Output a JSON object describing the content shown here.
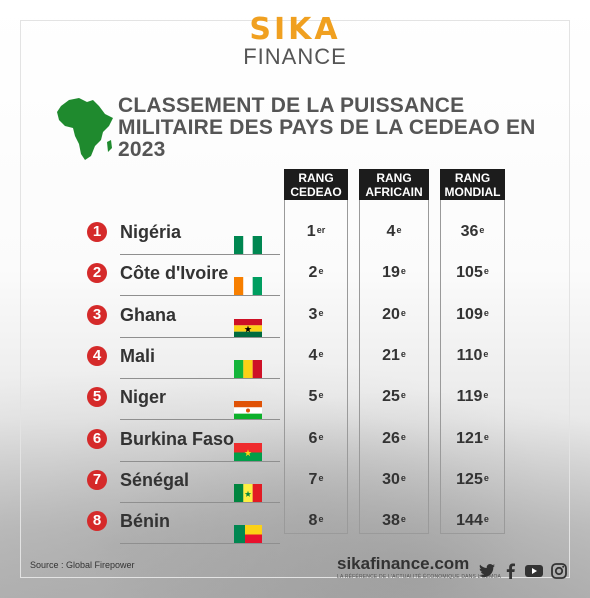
{
  "brand": {
    "line1": "SIKA",
    "line2": "FINANCE"
  },
  "title": "CLASSEMENT DE LA PUISSANCE MILITAIRE DES PAYS DE LA CEDEAO EN 2023",
  "columns": [
    {
      "line1": "RANG",
      "line2": "CEDEAO"
    },
    {
      "line1": "RANG",
      "line2": "AFRICAIN"
    },
    {
      "line1": "RANG",
      "line2": "MONDIAL"
    }
  ],
  "rows": [
    {
      "num": "1",
      "country": "Nigéria",
      "flag": "nigeria",
      "cedeao": "1",
      "cedeao_sup": "er",
      "africain": "4",
      "africain_sup": "e",
      "mondial": "36",
      "mondial_sup": "e"
    },
    {
      "num": "2",
      "country": "Côte d'Ivoire",
      "flag": "cote-divoire",
      "cedeao": "2",
      "cedeao_sup": "e",
      "africain": "19",
      "africain_sup": "e",
      "mondial": "105",
      "mondial_sup": "e"
    },
    {
      "num": "3",
      "country": "Ghana",
      "flag": "ghana",
      "cedeao": "3",
      "cedeao_sup": "e",
      "africain": "20",
      "africain_sup": "e",
      "mondial": "109",
      "mondial_sup": "e"
    },
    {
      "num": "4",
      "country": "Mali",
      "flag": "mali",
      "cedeao": "4",
      "cedeao_sup": "e",
      "africain": "21",
      "africain_sup": "e",
      "mondial": "110",
      "mondial_sup": "e"
    },
    {
      "num": "5",
      "country": "Niger",
      "flag": "niger",
      "cedeao": "5",
      "cedeao_sup": "e",
      "africain": "25",
      "africain_sup": "e",
      "mondial": "119",
      "mondial_sup": "e"
    },
    {
      "num": "6",
      "country": "Burkina Faso",
      "flag": "burkina-faso",
      "cedeao": "6",
      "cedeao_sup": "e",
      "africain": "26",
      "africain_sup": "e",
      "mondial": "121",
      "mondial_sup": "e"
    },
    {
      "num": "7",
      "country": "Sénégal",
      "flag": "senegal",
      "cedeao": "7",
      "cedeao_sup": "e",
      "africain": "30",
      "africain_sup": "e",
      "mondial": "125",
      "mondial_sup": "e"
    },
    {
      "num": "8",
      "country": "Bénin",
      "flag": "benin",
      "cedeao": "8",
      "cedeao_sup": "e",
      "africain": "38",
      "africain_sup": "e",
      "mondial": "144",
      "mondial_sup": "e"
    }
  ],
  "source": "Source : Global Firepower",
  "footer": {
    "site": "sikafinance.com",
    "tagline": "LA RÉFÉRENCE DE L'ACTUALITÉ ÉCONOMIQUE DANS L'UEMOA"
  },
  "social_icons": [
    "twitter-icon",
    "facebook-icon",
    "youtube-icon",
    "instagram-icon"
  ],
  "colors": {
    "brand_orange": "#f0a020",
    "rank_red": "#d52a2a",
    "africa_green": "#1f8a2e",
    "header_black": "#1c1c1c"
  }
}
